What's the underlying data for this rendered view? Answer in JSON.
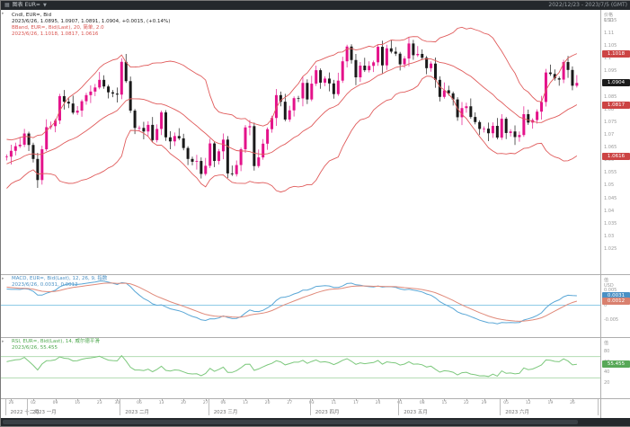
{
  "window": {
    "title": "图表 EUR=",
    "date_range": "2022/12/23 - 2023/7/5 (GMT)"
  },
  "panels": {
    "price": {
      "legend": [
        "Cndl, EUR=, Bid",
        "2023/6/26, 1.0895, 1.0907, 1.0891, 1.0904, +0.0015, (+0.14%)",
        "BBand, EUR=, Bid(Last), 20, 简单, 2.0",
        "2023/6/26, 1.1018, 1.0817, 1.0616"
      ],
      "unit": "价格\nUSD",
      "badges": [
        {
          "text": "1.1018",
          "value": 1.1018,
          "bg": "#cc4444"
        },
        {
          "text": "1.0904",
          "value": 1.0904,
          "bg": "#1a1a1a"
        },
        {
          "text": "1.0817",
          "value": 1.0817,
          "bg": "#cc4444"
        },
        {
          "text": "1.0616",
          "value": 1.0616,
          "bg": "#cc4444"
        }
      ]
    },
    "macd": {
      "legend": [
        "MACD, EUR=, Bid(Last), 12, 26, 9, 指数",
        "2023/6/26, 0.0031, 0.0012"
      ],
      "unit": "值\nUSD",
      "badges": [
        {
          "text": "0.0031",
          "value": 0.0031,
          "bg": "#4a90c4"
        },
        {
          "text": "0.0012",
          "value": 0.0012,
          "bg": "#d9806e"
        }
      ]
    },
    "rsi": {
      "legend": [
        "RSI, EUR=, Bid(Last), 14, 威尔德平滑",
        "2023/6/26, 55.455"
      ],
      "unit": "值",
      "badges": [
        {
          "text": "55.455",
          "value": 55.455,
          "bg": "#57a857"
        }
      ]
    }
  },
  "chart_data": {
    "type": "candlestick",
    "symbol": "EUR=",
    "interval": "daily",
    "warmup": 30,
    "slots": 134,
    "closes": [
      1.034,
      1.0292,
      1.0347,
      1.0385,
      1.0402,
      1.0354,
      1.032,
      1.0388,
      1.0415,
      1.046,
      1.0422,
      1.0481,
      1.052,
      1.0541,
      1.0498,
      1.0533,
      1.0557,
      1.0589,
      1.0611,
      1.0563,
      1.0592,
      1.0618,
      1.0641,
      1.0602,
      1.0633,
      1.0658,
      1.0622,
      1.0596,
      1.063,
      1.0613,
      1.0614,
      1.0637,
      1.0655,
      1.0661,
      1.0705,
      1.066,
      1.0605,
      1.0522,
      1.0643,
      1.073,
      1.0734,
      1.0756,
      1.0852,
      1.083,
      1.0823,
      1.0787,
      1.0795,
      1.0832,
      1.0856,
      1.087,
      1.0886,
      1.0916,
      1.089,
      1.0867,
      1.0862,
      1.0858,
      1.0987,
      1.0911,
      1.0795,
      1.0727,
      1.0727,
      1.0713,
      1.0739,
      1.0679,
      1.0723,
      1.0788,
      1.069,
      1.0674,
      1.0695,
      1.0686,
      1.0648,
      1.0605,
      1.0594,
      1.0597,
      1.0546,
      1.0578,
      1.0666,
      1.0597,
      1.0635,
      1.0681,
      1.0548,
      1.0545,
      1.0581,
      1.0643,
      1.0729,
      1.0734,
      1.0577,
      1.0611,
      1.0665,
      1.0722,
      1.0766,
      1.0856,
      1.083,
      1.076,
      1.0796,
      1.0844,
      1.0843,
      1.0904,
      1.0839,
      1.0901,
      1.0954,
      1.0905,
      1.0921,
      1.0902,
      1.086,
      1.0913,
      1.0989,
      1.1047,
      1.0994,
      1.0926,
      1.0972,
      1.0954,
      1.0971,
      1.0985,
      1.1046,
      1.0973,
      1.104,
      1.1027,
      1.1019,
      1.0977,
      1.1,
      1.1059,
      1.1013,
      1.1018,
      1.1003,
      1.0962,
      1.098,
      1.0916,
      1.0849,
      1.0875,
      1.0863,
      1.0839,
      1.0769,
      1.0805,
      1.0812,
      1.077,
      1.075,
      1.0723,
      1.0724,
      1.0706,
      1.0735,
      1.0689,
      1.0763,
      1.0707,
      1.0713,
      1.0691,
      1.0699,
      1.0781,
      1.0748,
      1.0758,
      1.0791,
      1.0829,
      1.0945,
      1.0939,
      1.0922,
      1.0917,
      1.0986,
      1.0955,
      1.0893,
      1.0904
    ],
    "wick_amps": [
      0.0009,
      0.0024,
      0.0014,
      0.0031,
      0.0018,
      0.0007
    ],
    "bollinger": {
      "period": 20,
      "mult": 2,
      "type": "简单"
    },
    "macd": {
      "fast": 12,
      "slow": 26,
      "signal": 9,
      "type": "指数"
    },
    "rsi": {
      "period": 14,
      "smoothing": "威尔德平滑"
    },
    "price_axis": {
      "max": 1.117,
      "min": 1.018,
      "ticks": [
        "1.115",
        "1.11",
        "1.105",
        "1.1",
        "1.095",
        "1.09",
        "1.085",
        "1.08",
        "1.075",
        "1.07",
        "1.065",
        "1.06",
        "1.055",
        "1.05",
        "1.045",
        "1.04",
        "1.035",
        "1.03",
        "1.025"
      ]
    },
    "macd_axis": {
      "max": 0.009,
      "min": -0.009,
      "ticks": [
        "0.005",
        "0",
        "-0.005"
      ]
    },
    "rsi_axis": {
      "max": 100,
      "min": 0,
      "ticks": [
        "80",
        "60",
        "40",
        "20"
      ],
      "ref_lines": [
        70,
        30
      ]
    },
    "months": [
      {
        "label": "2022 十二月",
        "start": 0
      },
      {
        "label": "2023 一月",
        "start": 5
      },
      {
        "label": "2023 二月",
        "start": 26
      },
      {
        "label": "2023 三月",
        "start": 46
      },
      {
        "label": "2023 四月",
        "start": 69
      },
      {
        "label": "2023 五月",
        "start": 89
      },
      {
        "label": "2023 六月",
        "start": 112
      }
    ],
    "day_ticks": [
      [
        1,
        "26"
      ],
      [
        6,
        "02"
      ],
      [
        11,
        "09"
      ],
      [
        16,
        "16"
      ],
      [
        21,
        "23"
      ],
      [
        25,
        "30"
      ],
      [
        30,
        "06"
      ],
      [
        35,
        "13"
      ],
      [
        40,
        "20"
      ],
      [
        45,
        "27"
      ],
      [
        49,
        "06"
      ],
      [
        54,
        "13"
      ],
      [
        59,
        "20"
      ],
      [
        64,
        "27"
      ],
      [
        69,
        "03"
      ],
      [
        74,
        "11"
      ],
      [
        79,
        "17"
      ],
      [
        84,
        "24"
      ],
      [
        89,
        "01"
      ],
      [
        94,
        "08"
      ],
      [
        99,
        "15"
      ],
      [
        104,
        "22"
      ],
      [
        108,
        "29"
      ],
      [
        113,
        "05"
      ],
      [
        118,
        "12"
      ],
      [
        123,
        "19"
      ],
      [
        128,
        "26"
      ]
    ],
    "colors": {
      "up": "#e4128a",
      "down": "#1a1a1a",
      "band": "#e05c5c",
      "macd_line": "#5aa7d6",
      "signal_line": "#e08a7a",
      "zero_line": "#8ecae6",
      "rsi_line": "#7cc87c",
      "rsi_ref": "#a5d6a5",
      "axis_text": "#9a9a9a"
    }
  }
}
